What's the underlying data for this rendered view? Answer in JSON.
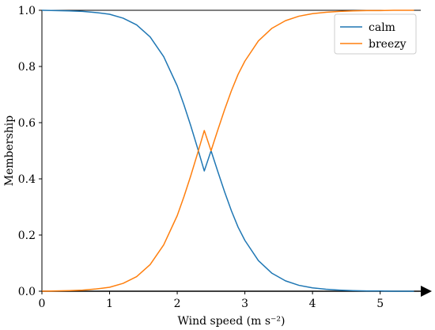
{
  "chart_data": {
    "type": "line",
    "xlabel": "Wind speed (m s⁻²)",
    "ylabel": "Membership",
    "xlim": [
      0,
      5.6
    ],
    "ylim": [
      0,
      1.0
    ],
    "xticks": [
      0,
      1,
      2,
      3,
      4,
      5
    ],
    "yticks": [
      0.0,
      0.2,
      0.4,
      0.6,
      0.8,
      1.0
    ],
    "xtick_labels": [
      "0",
      "1",
      "2",
      "3",
      "4",
      "5"
    ],
    "ytick_labels": [
      "0.0",
      "0.2",
      "0.4",
      "0.6",
      "0.8",
      "1.0"
    ],
    "grid": false,
    "legend_position": "top-right",
    "x": [
      0,
      0.2,
      0.4,
      0.6,
      0.8,
      1.0,
      1.2,
      1.4,
      1.6,
      1.8,
      2.0,
      2.1,
      2.2,
      2.3,
      2.4,
      2.5,
      2.6,
      2.7,
      2.8,
      2.9,
      3.0,
      3.2,
      3.4,
      3.6,
      3.8,
      4.0,
      4.2,
      4.4,
      4.6,
      4.8,
      5.0,
      5.2,
      5.4,
      5.5
    ],
    "series": [
      {
        "name": "calm",
        "color": "#1f77b4",
        "values": [
          1.0,
          0.999,
          0.998,
          0.996,
          0.992,
          0.986,
          0.972,
          0.948,
          0.905,
          0.835,
          0.731,
          0.663,
          0.589,
          0.51,
          0.428,
          0.5,
          0.426,
          0.354,
          0.287,
          0.228,
          0.181,
          0.109,
          0.064,
          0.037,
          0.021,
          0.012,
          0.007,
          0.004,
          0.002,
          0.001,
          0.001,
          0.0,
          0.0,
          0.0
        ]
      },
      {
        "name": "breezy",
        "color": "#ff7f0e",
        "values": [
          0.0,
          0.001,
          0.002,
          0.004,
          0.008,
          0.014,
          0.028,
          0.052,
          0.095,
          0.165,
          0.269,
          0.337,
          0.411,
          0.49,
          0.572,
          0.5,
          0.574,
          0.646,
          0.713,
          0.772,
          0.819,
          0.891,
          0.936,
          0.963,
          0.979,
          0.988,
          0.993,
          0.996,
          0.998,
          0.999,
          0.999,
          1.0,
          1.0,
          1.0
        ]
      }
    ]
  }
}
